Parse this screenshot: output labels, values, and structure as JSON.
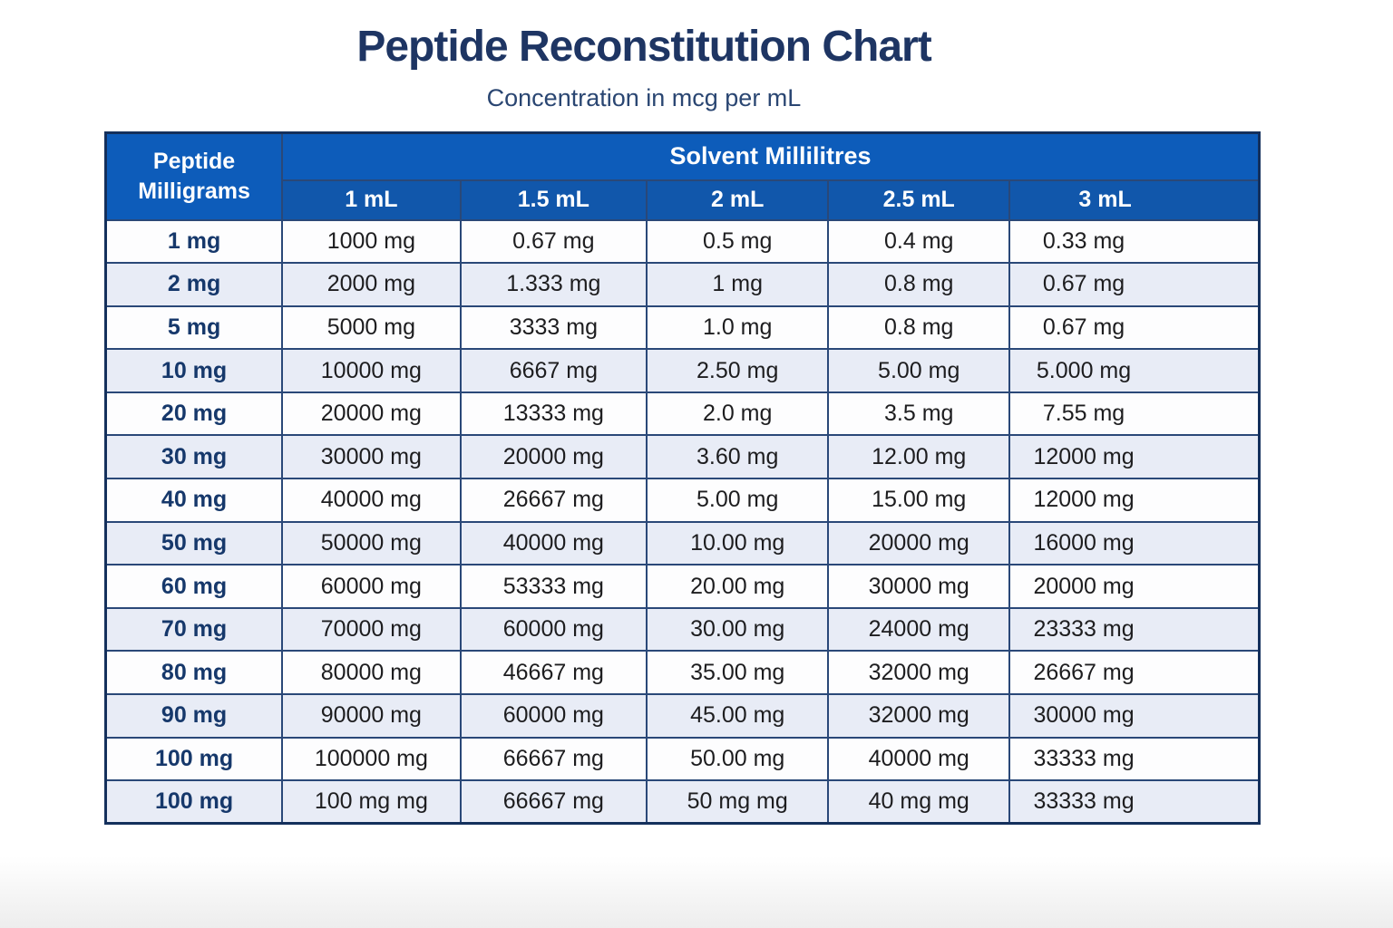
{
  "page": {
    "title": "Peptide Reconstitution Chart",
    "subtitle": "Concentration in mcg per mL"
  },
  "chart_data": {
    "type": "table",
    "title": "Peptide Reconstitution Chart",
    "subtitle": "Concentration in mcg per mL",
    "row_header": "Peptide Milligrams",
    "group_header": "Solvent Millilitres",
    "columns": [
      "1 mL",
      "1.5 mL",
      "2 mL",
      "2.5 mL",
      "3 mL"
    ],
    "rows": [
      {
        "label": "1 mg",
        "values": [
          "1000 mg",
          "0.67 mg",
          "0.5 mg",
          "0.4 mg",
          "0.33 mg"
        ]
      },
      {
        "label": "2 mg",
        "values": [
          "2000 mg",
          "1.333 mg",
          "1 mg",
          "0.8 mg",
          "0.67 mg"
        ]
      },
      {
        "label": "5 mg",
        "values": [
          "5000 mg",
          "3333 mg",
          "1.0 mg",
          "0.8 mg",
          "0.67 mg"
        ]
      },
      {
        "label": "10 mg",
        "values": [
          "10000 mg",
          "6667 mg",
          "2.50 mg",
          "5.00 mg",
          "5.000 mg"
        ]
      },
      {
        "label": "20 mg",
        "values": [
          "20000 mg",
          "13333 mg",
          "2.0 mg",
          "3.5 mg",
          "7.55 mg"
        ]
      },
      {
        "label": "30 mg",
        "values": [
          "30000 mg",
          "20000 mg",
          "3.60 mg",
          "12.00 mg",
          "12000 mg"
        ]
      },
      {
        "label": "40 mg",
        "values": [
          "40000 mg",
          "26667 mg",
          "5.00 mg",
          "15.00 mg",
          "12000 mg"
        ]
      },
      {
        "label": "50 mg",
        "values": [
          "50000 mg",
          "40000 mg",
          "10.00 mg",
          "20000 mg",
          "16000 mg"
        ]
      },
      {
        "label": "60 mg",
        "values": [
          "60000 mg",
          "53333 mg",
          "20.00 mg",
          "30000 mg",
          "20000 mg"
        ]
      },
      {
        "label": "70 mg",
        "values": [
          "70000 mg",
          "60000 mg",
          "30.00 mg",
          "24000 mg",
          "23333 mg"
        ]
      },
      {
        "label": "80 mg",
        "values": [
          "80000 mg",
          "46667 mg",
          "35.00 mg",
          "32000 mg",
          "26667 mg"
        ]
      },
      {
        "label": "90 mg",
        "values": [
          "90000 mg",
          "60000 mg",
          "45.00 mg",
          "32000 mg",
          "30000 mg"
        ]
      },
      {
        "label": "100 mg",
        "values": [
          "100000 mg",
          "66667 mg",
          "50.00 mg",
          "40000 mg",
          "33333 mg"
        ]
      },
      {
        "label": "100 mg",
        "values": [
          "100 mg mg",
          "66667 mg",
          "50 mg mg",
          "40 mg mg",
          "33333 mg"
        ]
      }
    ],
    "layout": {
      "legend": "none",
      "grid": "on",
      "striped_rows": true
    },
    "colors": {
      "header_blue": "#0d5cba",
      "subheader_blue": "#1157ab",
      "stripe_light": "#e8ecf6",
      "row_white": "#fdfdfe",
      "border_navy": "#2a4878",
      "outer_border": "#14305c",
      "title_navy": "#1e3563",
      "row_label_navy": "#16386b"
    }
  }
}
